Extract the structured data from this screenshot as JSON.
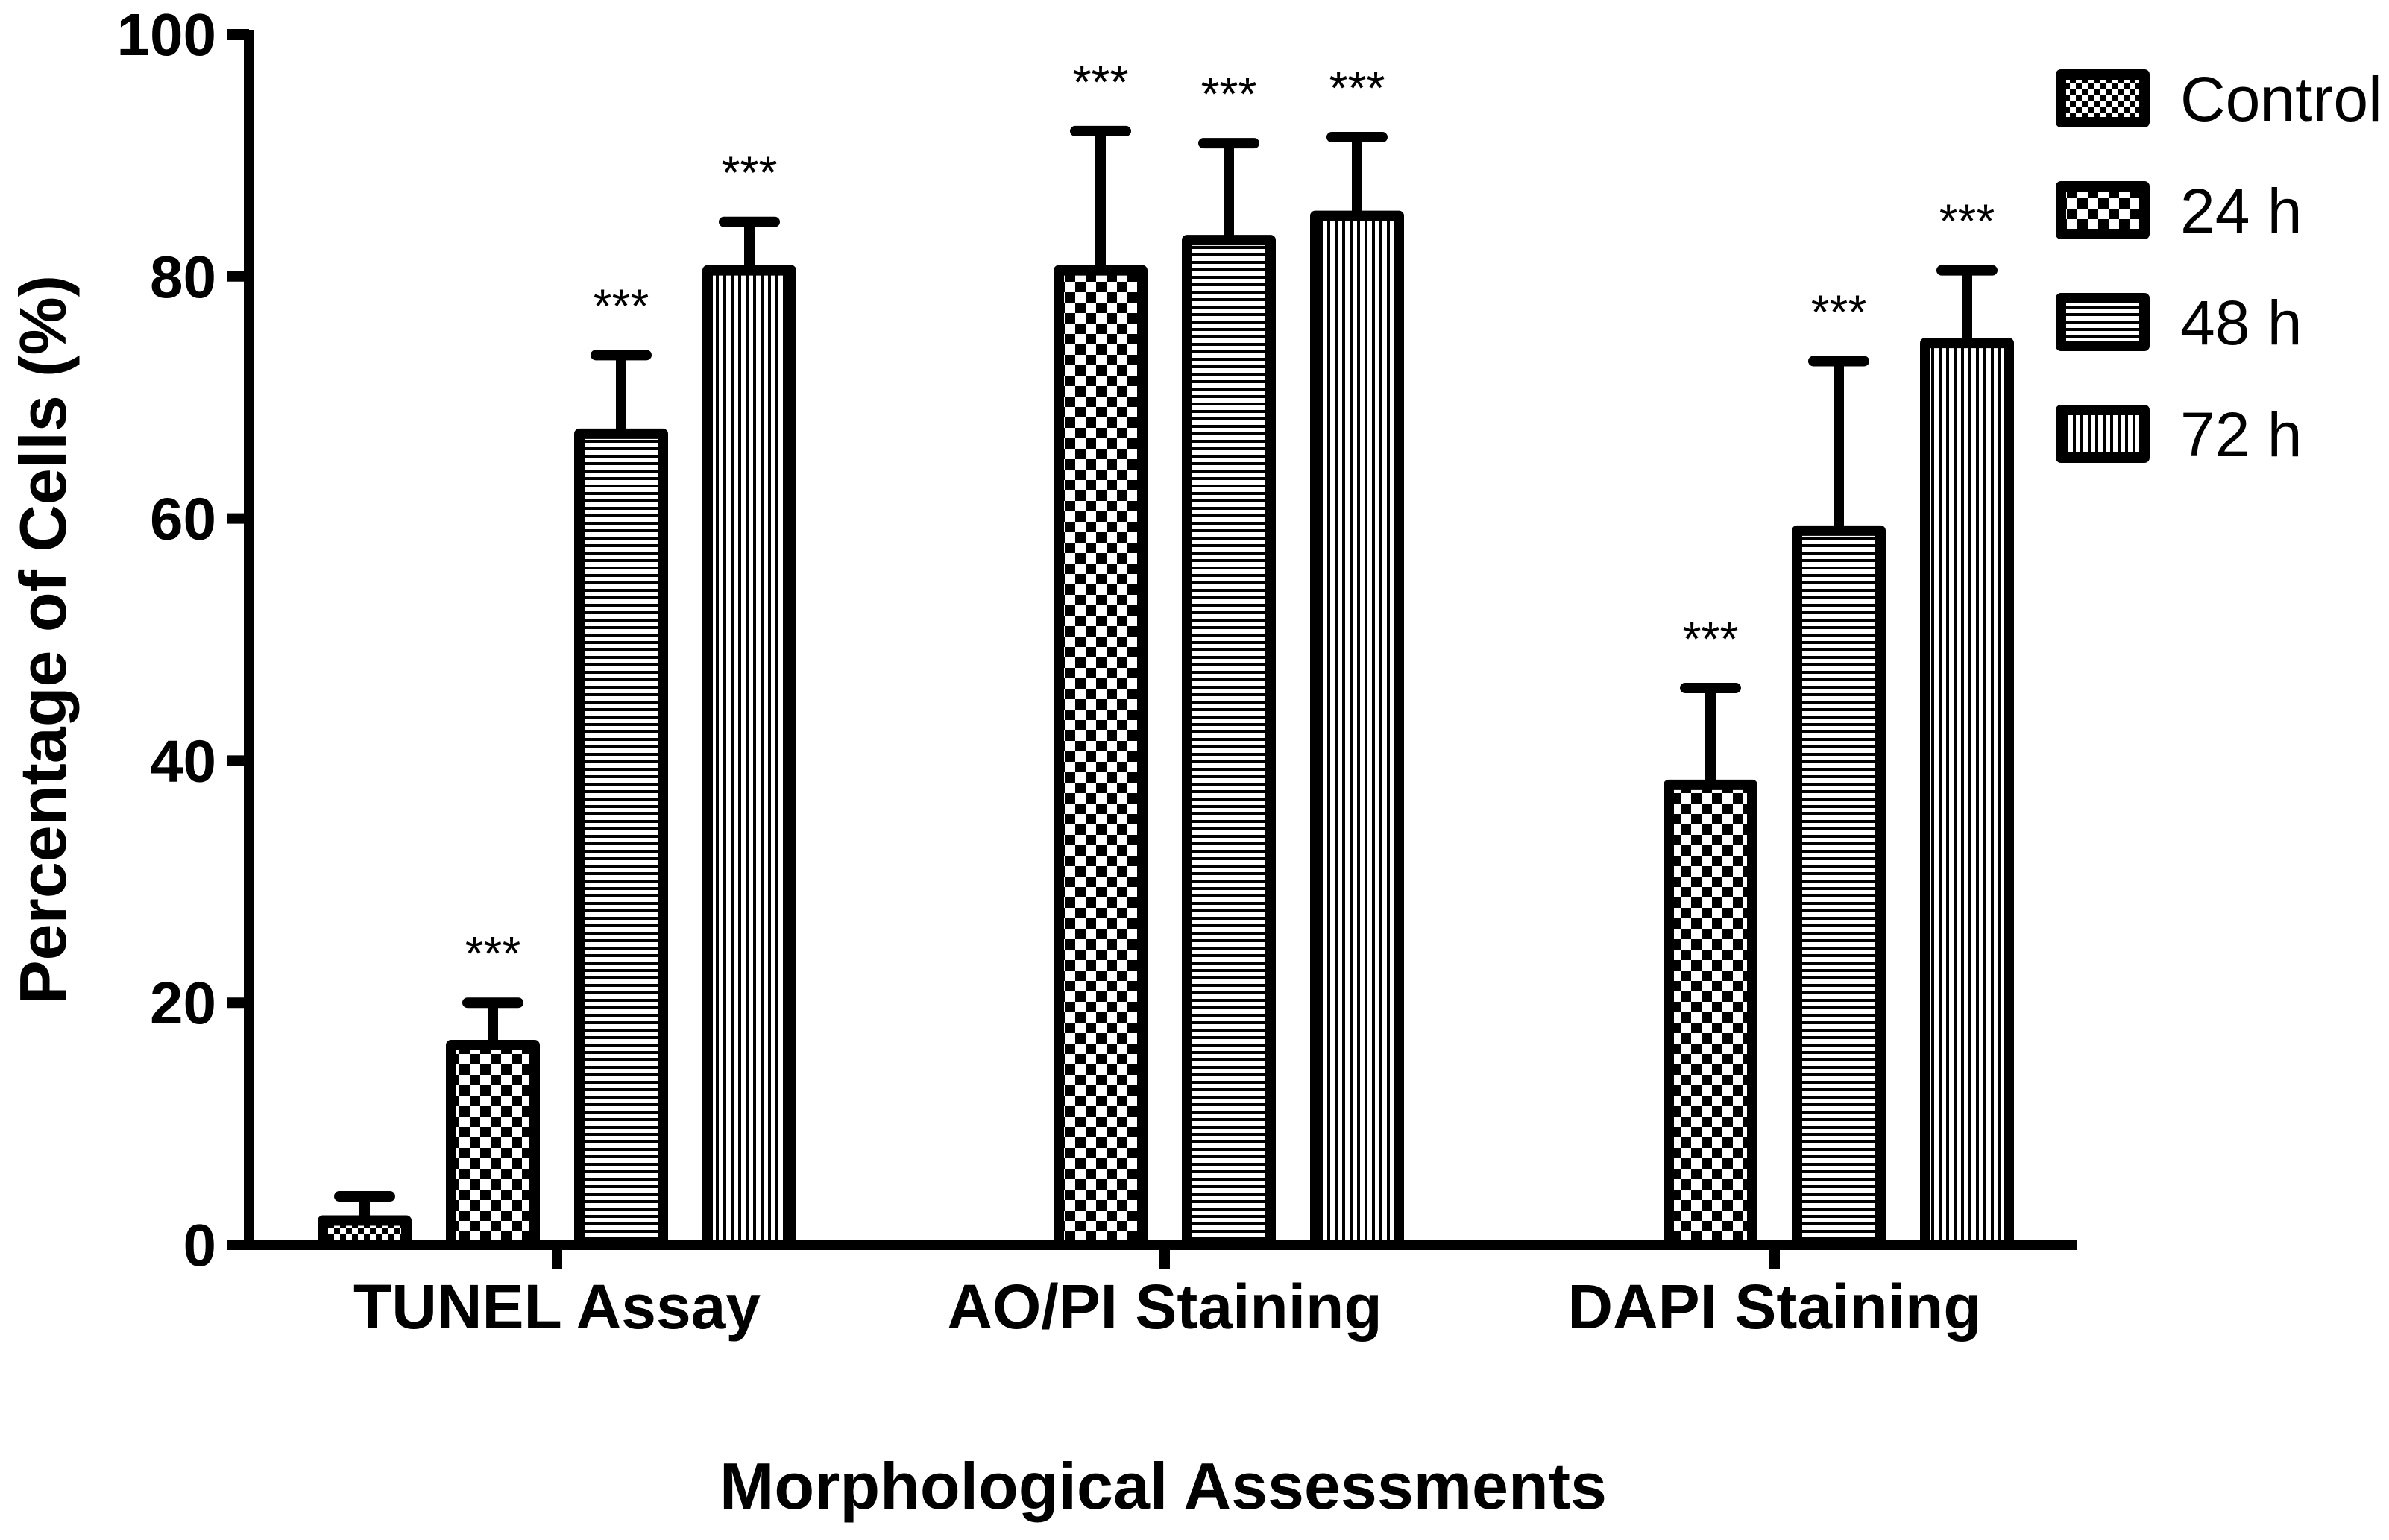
{
  "chart_data": {
    "type": "bar",
    "title": "",
    "xlabel": "Morphological Assessments",
    "ylabel": "Percentage of Cells (%)",
    "ylim": [
      0,
      100
    ],
    "yticks": [
      0,
      20,
      40,
      60,
      80,
      100
    ],
    "grid": false,
    "legend_position": "top-right",
    "categories": [
      "TUNEL Assay",
      "AO/PI Staining",
      "DAPI Staining"
    ],
    "series": [
      {
        "name": "Control",
        "values": [
          2,
          null,
          null
        ],
        "errors": [
          2,
          null,
          null
        ],
        "significance": [
          "",
          "",
          ""
        ],
        "pattern": "fine-checker"
      },
      {
        "name": "24 h",
        "values": [
          16.5,
          80.5,
          38
        ],
        "errors": [
          3.5,
          11.5,
          8
        ],
        "significance": [
          "***",
          "***",
          "***"
        ],
        "pattern": "checker"
      },
      {
        "name": "48 h",
        "values": [
          67,
          83,
          59
        ],
        "errors": [
          6.5,
          8,
          14
        ],
        "significance": [
          "***",
          "***",
          "***"
        ],
        "pattern": "horizontal-lines"
      },
      {
        "name": "72 h",
        "values": [
          80.5,
          85,
          74.5
        ],
        "errors": [
          4,
          6.5,
          6
        ],
        "significance": [
          "***",
          "***",
          "***"
        ],
        "pattern": "vertical-lines"
      }
    ]
  }
}
